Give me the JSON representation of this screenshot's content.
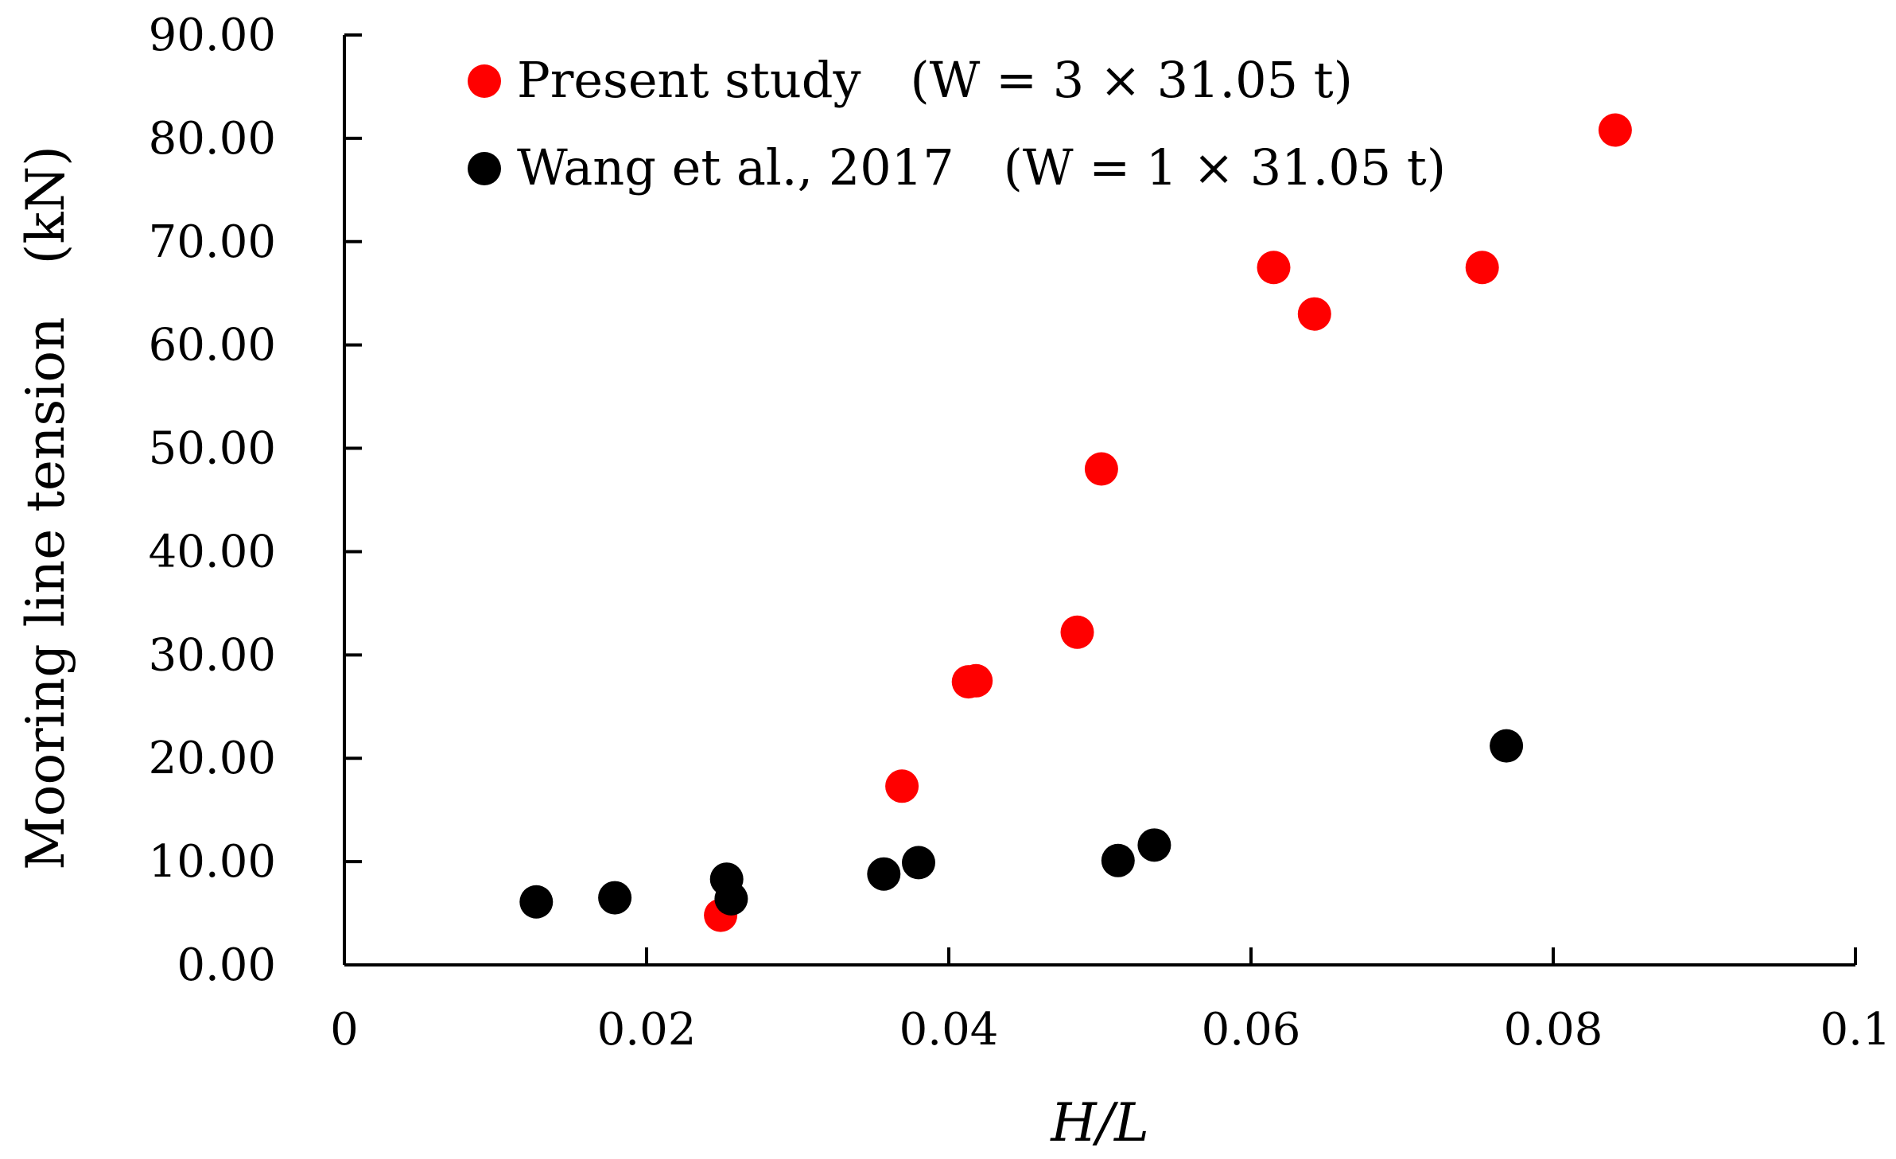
{
  "chart_data": {
    "type": "scatter",
    "xlabel": "H/L",
    "ylabel": "Mooring line tension　(kN)",
    "xlim": [
      0,
      0.1
    ],
    "ylim": [
      0,
      90
    ],
    "x_ticks": [
      "0",
      "0.02",
      "0.04",
      "0.06",
      "0.08",
      "0.1"
    ],
    "y_ticks": [
      "0.00",
      "10.00",
      "20.00",
      "30.00",
      "40.00",
      "50.00",
      "60.00",
      "70.00",
      "80.00",
      "90.00"
    ],
    "grid": false,
    "legend_position": "top-left",
    "series": [
      {
        "name": "Present study　(W = 3 × 31.05 t)",
        "color": "#ff0000",
        "points": [
          {
            "x": 0.0249,
            "y": 4.8
          },
          {
            "x": 0.0369,
            "y": 17.3
          },
          {
            "x": 0.0413,
            "y": 27.4
          },
          {
            "x": 0.0418,
            "y": 27.5
          },
          {
            "x": 0.0485,
            "y": 32.2
          },
          {
            "x": 0.0501,
            "y": 48.0
          },
          {
            "x": 0.0615,
            "y": 67.5
          },
          {
            "x": 0.0642,
            "y": 63.0
          },
          {
            "x": 0.0753,
            "y": 67.5
          },
          {
            "x": 0.0841,
            "y": 80.8
          }
        ]
      },
      {
        "name": "Wang et al., 2017　(W = 1 × 31.05 t)",
        "color": "#000000",
        "points": [
          {
            "x": 0.0127,
            "y": 6.1
          },
          {
            "x": 0.0179,
            "y": 6.5
          },
          {
            "x": 0.0253,
            "y": 8.3
          },
          {
            "x": 0.0256,
            "y": 6.4
          },
          {
            "x": 0.0357,
            "y": 8.8
          },
          {
            "x": 0.038,
            "y": 9.9
          },
          {
            "x": 0.0512,
            "y": 10.1
          },
          {
            "x": 0.0536,
            "y": 11.6
          },
          {
            "x": 0.0769,
            "y": 21.2
          }
        ]
      }
    ]
  }
}
